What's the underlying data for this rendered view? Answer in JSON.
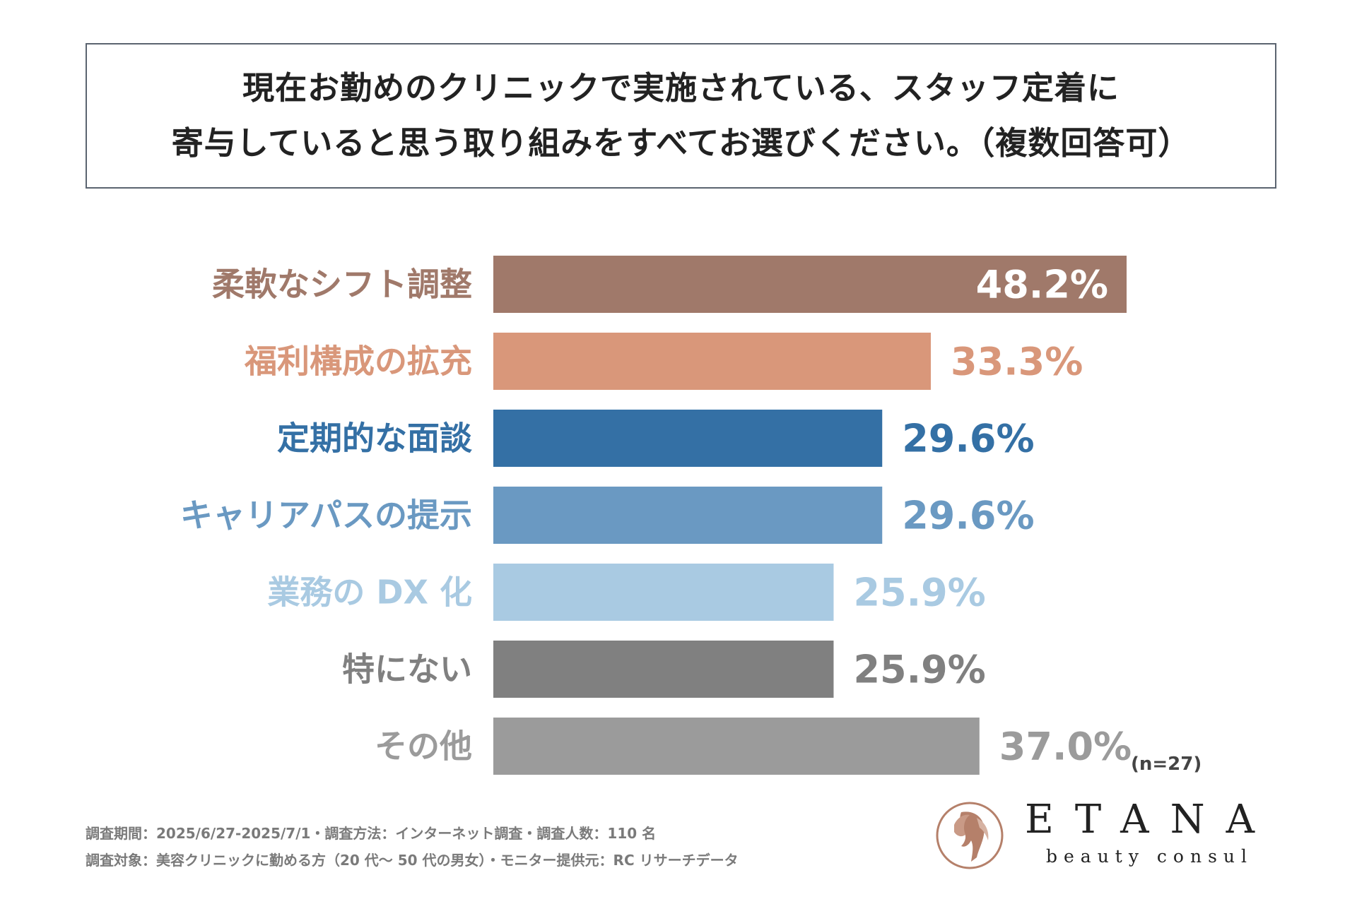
{
  "title": {
    "line1": "現在お勤めのクリニックで実施されている、スタッフ定着に",
    "line2": "寄与していると思う取り組みをすべてお選びください。（複数回答可）"
  },
  "chart_data": {
    "type": "bar",
    "orientation": "horizontal",
    "categories": [
      "柔軟なシフト調整",
      "福利構成の拡充",
      "定期的な面談",
      "キャリアパスの提示",
      "業務の DX 化",
      "特にない",
      "その他"
    ],
    "values": [
      48.2,
      33.3,
      29.6,
      29.6,
      25.9,
      25.9,
      37.0
    ],
    "value_labels": [
      "48.2%",
      "33.3%",
      "29.6%",
      "29.6%",
      "25.9%",
      "25.9%",
      "37.0%"
    ],
    "colors": [
      "#a0796a",
      "#d9977a",
      "#3470a5",
      "#6a99c2",
      "#a9cae2",
      "#808080",
      "#9b9b9b"
    ],
    "label_inside": [
      true,
      false,
      false,
      false,
      false,
      false,
      false
    ],
    "note": "(n=27)"
  },
  "footer": {
    "line1": "調査期間：2025/6/27-2025/7/1・調査方法：インターネット調査・調査人数：110 名",
    "line2": "調査対象：美容クリニックに勤める方（20 代～ 50 代の男女）・モニター提供元：RC リサーチデータ"
  },
  "logo": {
    "word": "ETANA",
    "sub": "beauty consul",
    "color": "#b5806a"
  }
}
